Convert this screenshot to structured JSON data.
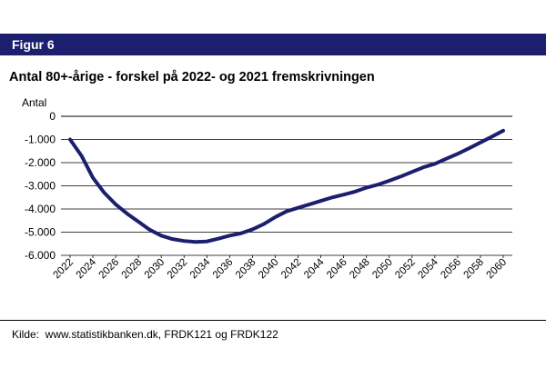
{
  "header": {
    "figure_label": "Figur 6"
  },
  "colors": {
    "header_bg": "#1c1f6e",
    "line": "#1c1f6e",
    "grid": "#000000"
  },
  "chart_data": {
    "type": "line",
    "title": "Antal 80+-årige - forskel på 2022- og 2021 fremskrivningen",
    "ylabel": "Antal",
    "xlabel": "",
    "ylim": [
      -6000,
      0
    ],
    "yticks": [
      0,
      -1000,
      -2000,
      -3000,
      -4000,
      -5000,
      -6000
    ],
    "ytick_labels": [
      "0",
      "-1.000",
      "-2.000",
      "-3.000",
      "-4.000",
      "-5.000",
      "-6.000"
    ],
    "xticks": [
      "2022",
      "2024",
      "2026",
      "2028",
      "2030",
      "2032",
      "2034",
      "2036",
      "2038",
      "2040",
      "2042",
      "2044",
      "2046",
      "2048",
      "2050",
      "2052",
      "2054",
      "2056",
      "2058",
      "2060"
    ],
    "grid": "horizontal",
    "legend": "none",
    "series": [
      {
        "x": [
          2022,
          2023,
          2024,
          2025,
          2026,
          2027,
          2028,
          2029,
          2030,
          2031,
          2032,
          2033,
          2034,
          2035,
          2036,
          2037,
          2038,
          2039,
          2040,
          2041,
          2042,
          2043,
          2044,
          2045,
          2046,
          2047,
          2048,
          2049,
          2050,
          2051,
          2052,
          2053,
          2054,
          2055,
          2056,
          2057,
          2058,
          2059,
          2060
        ],
        "values": [
          -1000,
          -1700,
          -2650,
          -3300,
          -3800,
          -4200,
          -4550,
          -4900,
          -5150,
          -5300,
          -5380,
          -5420,
          -5400,
          -5280,
          -5150,
          -5050,
          -4880,
          -4650,
          -4350,
          -4100,
          -3950,
          -3800,
          -3650,
          -3500,
          -3380,
          -3250,
          -3080,
          -2950,
          -2780,
          -2600,
          -2400,
          -2200,
          -2050,
          -1830,
          -1620,
          -1380,
          -1130,
          -880,
          -620
        ]
      }
    ]
  },
  "source": {
    "text": "Kilde:  www.statistikbanken.dk, FRDK121 og FRDK122"
  }
}
